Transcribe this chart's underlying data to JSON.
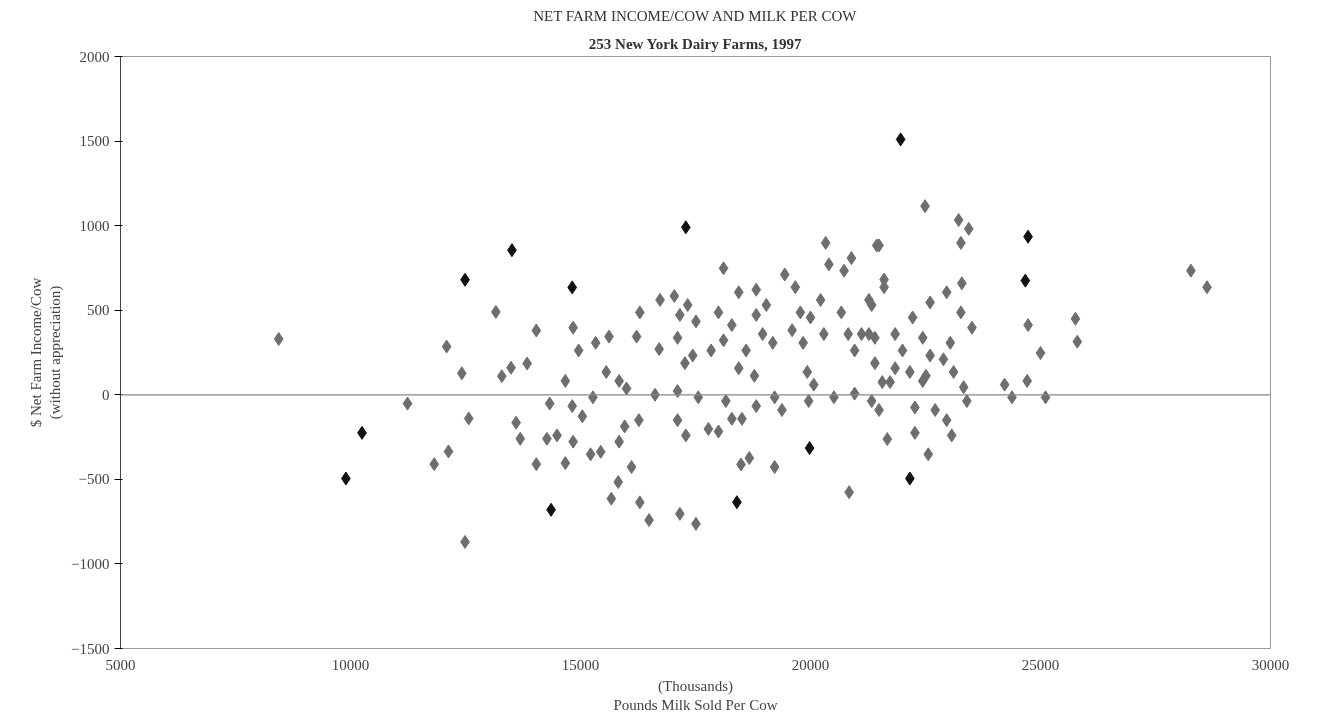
{
  "chart_data": {
    "type": "scatter",
    "title": "NET FARM INCOME/COW AND MILK PER COW",
    "subtitle": "253 New York Dairy Farms, 1997",
    "xlabel": "(Thousands)\nPounds Milk Sold Per Cow",
    "ylabel": "$ Net Farm Income/Cow\n(without appreciation)",
    "xlim": [
      5000,
      30000
    ],
    "xticks": [
      5000,
      10000,
      15000,
      20000,
      25000,
      30000
    ],
    "ylim": [
      -1500,
      2000
    ],
    "yticks": [
      -1500,
      -1000,
      -500,
      0,
      500,
      1000,
      1500,
      2000
    ],
    "grid": false,
    "marker": "diamond",
    "ref_lines": [
      {
        "axis": "y",
        "value": 0,
        "color": "#888888"
      }
    ],
    "series": [
      {
        "color": "#6e6e6e",
        "x": [
          8440,
          11240,
          11820,
          12130,
          12090,
          12420,
          12570,
          12490,
          13160,
          13290,
          13490,
          13600,
          13690,
          14040,
          13840,
          14330,
          14040,
          14270,
          14490,
          14670,
          14840,
          14960,
          14820,
          15040,
          14840,
          14670,
          15270,
          15220,
          15440,
          15330,
          15620,
          15560,
          15840,
          16000,
          15960,
          15840,
          16110,
          15820,
          15670,
          16290,
          16490,
          16270,
          16290,
          16220,
          16620,
          16730,
          17040,
          16710,
          17110,
          17160,
          17330,
          17510,
          17270,
          17440,
          17110,
          17110,
          17290,
          17160,
          17510,
          17560,
          17780,
          17840,
          18110,
          18000,
          18110,
          18440,
          18290,
          18440,
          18600,
          18780,
          18160,
          18290,
          18510,
          18000,
          18490,
          18670,
          18820,
          19040,
          18820,
          18960,
          19180,
          18820,
          19220,
          19380,
          19220,
          19440,
          19670,
          19780,
          19600,
          20000,
          19930,
          19840,
          20070,
          19960,
          20220,
          20330,
          20400,
          20290,
          20510,
          20730,
          20890,
          20670,
          20820,
          20960,
          20960,
          20840,
          21110,
          21270,
          21440,
          21330,
          21400,
          22490,
          23220,
          23440,
          23270,
          21490,
          21600,
          21600,
          23290,
          22600,
          22960,
          23270,
          23510,
          21330,
          22220,
          21840,
          21270,
          22440,
          22000,
          22600,
          23040,
          22890,
          21400,
          21840,
          22160,
          22510,
          23110,
          21560,
          21730,
          22440,
          23330,
          23400,
          21490,
          22270,
          22710,
          22960,
          23070,
          22270,
          21670,
          22560,
          24220,
          24380,
          24710,
          25110,
          25000,
          24730,
          25760,
          25800,
          28270,
          28620
        ],
        "values": [
          330,
          -52,
          -410,
          -335,
          285,
          127,
          -140,
          -870,
          490,
          110,
          160,
          -165,
          -260,
          380,
          185,
          -52,
          -410,
          -260,
          -240,
          82,
          397,
          262,
          -67,
          -127,
          -277,
          -404,
          -15,
          -352,
          -337,
          307,
          344,
          135,
          82,
          37,
          -187,
          -277,
          -427,
          -516,
          -614,
          -636,
          -741,
          -150,
          487,
          344,
          0,
          561,
          584,
          270,
          337,
          472,
          531,
          434,
          187,
          232,
          22,
          -150,
          -240,
          -704,
          -763,
          -15,
          -202,
          262,
          748,
          487,
          322,
          606,
          412,
          157,
          262,
          112,
          -37,
          -142,
          -142,
          -217,
          -412,
          -374,
          621,
          531,
          472,
          359,
          307,
          -67,
          -15,
          -90,
          -427,
          711,
          636,
          487,
          382,
          457,
          135,
          307,
          60,
          -37,
          561,
          898,
          771,
          359,
          -15,
          734,
          808,
          487,
          359,
          262,
          7,
          -576,
          359,
          561,
          883,
          -37,
          337,
          1115,
          1033,
          981,
          898,
          883,
          681,
          636,
          659,
          546,
          606,
          487,
          397,
          531,
          457,
          359,
          359,
          337,
          262,
          232,
          307,
          210,
          187,
          157,
          135,
          112,
          135,
          75,
          75,
          82,
          45,
          -37,
          -90,
          -75,
          -90,
          -150,
          -240,
          -225,
          -262,
          -352,
          60,
          -15,
          82,
          -15,
          247,
          412,
          449,
          314,
          734,
          636
        ]
      },
      {
        "color": "#111111",
        "x": [
          9900,
          10250,
          12490,
          13510,
          14820,
          14360,
          17290,
          18400,
          19980,
          21960,
          22160,
          24730,
          24670
        ],
        "values": [
          -495,
          -225,
          680,
          855,
          635,
          -680,
          990,
          -635,
          -315,
          1510,
          -495,
          935,
          675
        ]
      }
    ]
  }
}
